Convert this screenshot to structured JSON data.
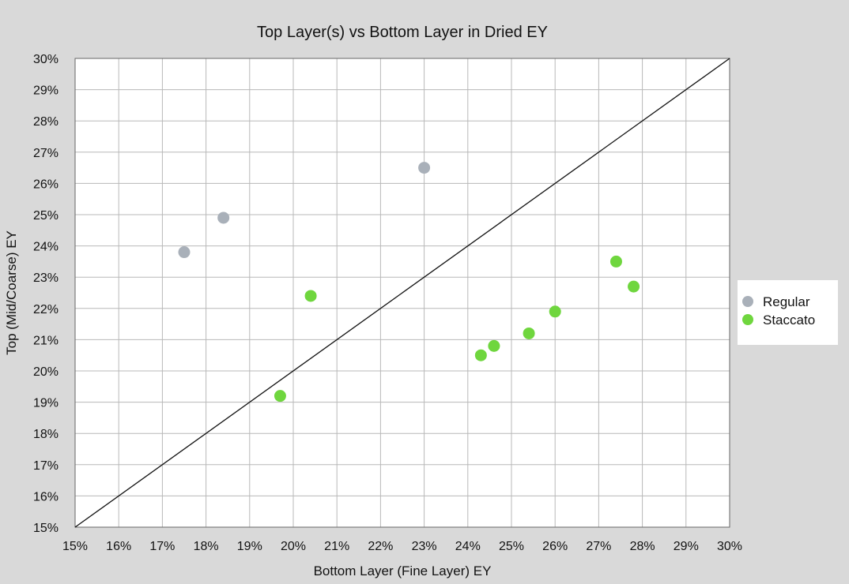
{
  "chart_data": {
    "type": "scatter",
    "title": "Top Layer(s) vs Bottom Layer in Dried EY",
    "xlabel": "Bottom Layer (Fine Layer) EY",
    "ylabel": "Top (Mid/Coarse) EY",
    "xlim": [
      15,
      30
    ],
    "ylim": [
      15,
      30
    ],
    "x_ticks": [
      "15%",
      "16%",
      "17%",
      "18%",
      "19%",
      "20%",
      "21%",
      "22%",
      "23%",
      "24%",
      "25%",
      "26%",
      "27%",
      "28%",
      "29%",
      "30%"
    ],
    "y_ticks": [
      "15%",
      "16%",
      "17%",
      "18%",
      "19%",
      "20%",
      "21%",
      "22%",
      "23%",
      "24%",
      "25%",
      "26%",
      "27%",
      "28%",
      "29%",
      "30%"
    ],
    "grid": true,
    "legend_position": "right",
    "reference_line": {
      "x": [
        15,
        30
      ],
      "y": [
        15,
        30
      ]
    },
    "series": [
      {
        "name": "Regular",
        "color": "#a9b0b9",
        "points": [
          {
            "x": 17.5,
            "y": 23.8
          },
          {
            "x": 18.4,
            "y": 24.9
          },
          {
            "x": 23.0,
            "y": 26.5
          }
        ]
      },
      {
        "name": "Staccato",
        "color": "#6fd63e",
        "points": [
          {
            "x": 19.7,
            "y": 19.2
          },
          {
            "x": 20.4,
            "y": 22.4
          },
          {
            "x": 24.3,
            "y": 20.5
          },
          {
            "x": 24.6,
            "y": 20.8
          },
          {
            "x": 25.4,
            "y": 21.2
          },
          {
            "x": 26.0,
            "y": 21.9
          },
          {
            "x": 27.4,
            "y": 23.5
          },
          {
            "x": 27.8,
            "y": 22.7
          }
        ]
      }
    ]
  }
}
